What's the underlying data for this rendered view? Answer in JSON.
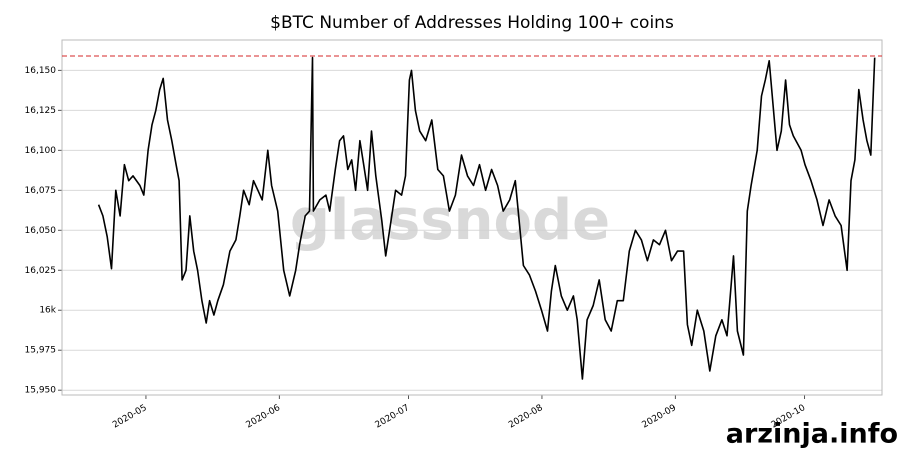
{
  "chart_data": {
    "type": "line",
    "title": "$BTC Number of Addresses Holding 100+ coins",
    "watermark": "glassnode",
    "credit": "arzinja.info",
    "x": [
      111,
      112,
      113,
      114,
      115,
      116,
      117,
      118,
      119,
      120.6,
      121.5,
      122.5,
      123.4,
      124.3,
      125.2,
      126,
      127,
      128,
      129,
      129.7,
      130.4,
      131.3,
      132.2,
      133.1,
      134,
      135,
      136,
      136.8,
      137.8,
      138.7,
      140,
      141.5,
      142.9,
      143.8,
      144.7,
      146,
      147,
      148,
      149,
      150.3,
      151.2,
      152.6,
      154,
      155.4,
      156.8,
      157.7,
      159,
      160,
      160.7,
      160.9,
      162.4,
      163.8,
      164.7,
      166,
      167,
      167.9,
      168.9,
      169.8,
      170.7,
      171.7,
      172.6,
      173.5,
      174.4,
      175.4,
      176.8,
      177.7,
      178.6,
      180,
      181.4,
      182.3,
      183.2,
      183.7,
      184.6,
      185.6,
      187,
      188.4,
      189.8,
      191.1,
      192.5,
      193.9,
      195.3,
      196.7,
      198.1,
      199.5,
      200.9,
      202.3,
      203.7,
      205,
      206.5,
      207.8,
      208.8,
      209.7,
      211.1,
      212.5,
      213.9,
      215.3,
      216.2,
      217.1,
      218.5,
      219.9,
      221.3,
      222.2,
      223.4,
      224.5,
      225.9,
      227.3,
      228.7,
      230.1,
      231.5,
      232.9,
      234.3,
      235.7,
      237.1,
      238.5,
      239.9,
      241.3,
      242.7,
      244.1,
      245.5,
      246.9,
      247.8,
      248.8,
      250.1,
      251.6,
      253,
      254.4,
      255.8,
      257,
      258.5,
      259.4,
      260.8,
      261.7,
      262.6,
      264,
      265,
      265.9,
      266.8,
      267.7,
      268.6,
      269.6,
      270.6,
      271.5,
      272.4,
      274.2,
      275.1,
      276.5,
      277.9,
      279.3,
      280.7,
      282.1,
      283.5,
      284.9,
      285.8,
      286.7,
      287.6,
      288.6,
      289.5,
      290.4,
      291.3
    ],
    "series": [
      {
        "name": "Addresses",
        "color": "#000000",
        "values": [
          16066,
          16059,
          16046,
          16026,
          16075,
          16059,
          16091,
          16081,
          16084,
          16078,
          16072,
          16100,
          16116,
          16125,
          16138,
          16145,
          16119,
          16106,
          16091,
          16081,
          16019,
          16025,
          16059,
          16037,
          16025,
          16006,
          15992,
          16006,
          15997,
          16006,
          16016,
          16037,
          16044,
          16059,
          16075,
          16066,
          16081,
          16075,
          16069,
          16100,
          16078,
          16062,
          16025,
          16009,
          16025,
          16041,
          16059,
          16062,
          16158,
          16062,
          16069,
          16072,
          16062,
          16088,
          16106,
          16109,
          16088,
          16094,
          16075,
          16106,
          16091,
          16075,
          16112,
          16084,
          16056,
          16034,
          16050,
          16075,
          16072,
          16084,
          16144,
          16150,
          16125,
          16112,
          16106,
          16119,
          16088,
          16084,
          16062,
          16072,
          16097,
          16084,
          16078,
          16091,
          16075,
          16088,
          16078,
          16062,
          16069,
          16081,
          16053,
          16028,
          16022,
          16012,
          16000,
          15987,
          16012,
          16028,
          16009,
          16000,
          16009,
          15994,
          15957,
          15994,
          16003,
          16019,
          15994,
          15987,
          16006,
          16006,
          16037,
          16050,
          16044,
          16031,
          16044,
          16041,
          16050,
          16031,
          16037,
          16037,
          15991,
          15978,
          16000,
          15987,
          15962,
          15984,
          15994,
          15984,
          16034,
          15987,
          15972,
          16062,
          16078,
          16100,
          16134,
          16144,
          16156,
          16128,
          16100,
          16112,
          16144,
          16116,
          16109,
          16100,
          16091,
          16081,
          16069,
          16053,
          16069,
          16059,
          16053,
          16025,
          16081,
          16094,
          16138,
          16119,
          16106,
          16097,
          16158
        ]
      }
    ],
    "reference_line": {
      "value": 16159,
      "color": "#d62728"
    },
    "xlim": [
      102.5,
      293
    ],
    "xticks": [
      {
        "value": 122,
        "label": "2020-05"
      },
      {
        "value": 153,
        "label": "2020-06"
      },
      {
        "value": 183,
        "label": "2020-07"
      },
      {
        "value": 214,
        "label": "2020-08"
      },
      {
        "value": 245,
        "label": "2020-09"
      },
      {
        "value": 275,
        "label": "2020-10"
      }
    ],
    "ylim": [
      15947,
      16169
    ],
    "yticks": [
      {
        "value": 15950,
        "label": "15,950"
      },
      {
        "value": 15975,
        "label": "15,975"
      },
      {
        "value": 16000,
        "label": "16k"
      },
      {
        "value": 16025,
        "label": "16,025"
      },
      {
        "value": 16050,
        "label": "16,050"
      },
      {
        "value": 16075,
        "label": "16,075"
      },
      {
        "value": 16100,
        "label": "16,100"
      },
      {
        "value": 16125,
        "label": "16,125"
      },
      {
        "value": 16150,
        "label": "16,150"
      }
    ],
    "grid": true
  }
}
